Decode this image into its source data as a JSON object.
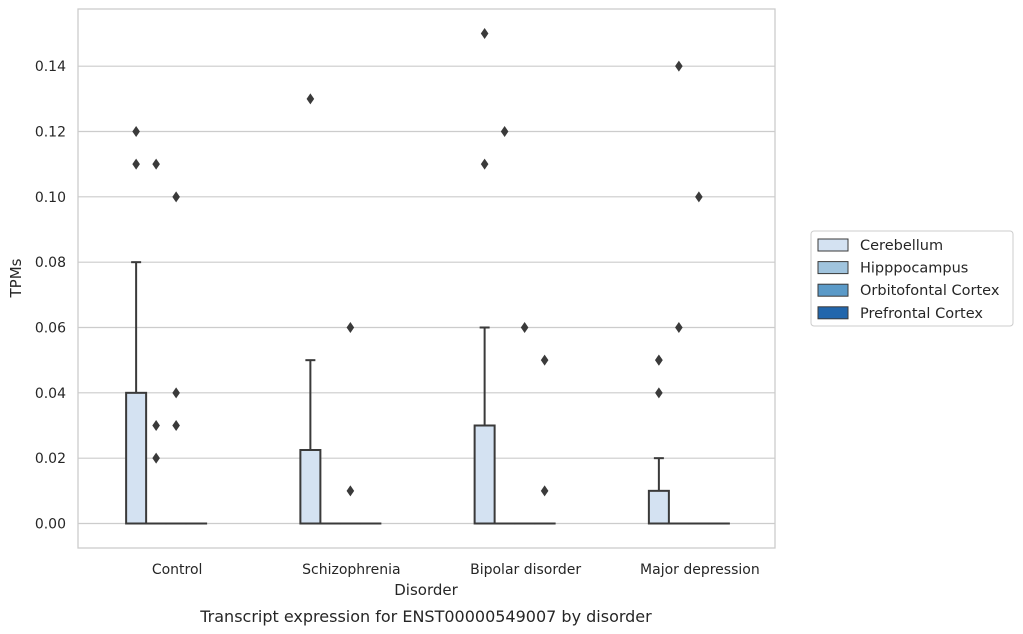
{
  "chart_data": {
    "type": "box",
    "caption": "Transcript expression for ENST00000549007 by disorder",
    "xlabel": "Disorder",
    "ylabel": "TPMs",
    "ylim": [
      -0.0075,
      0.1575
    ],
    "yticks": [
      0.0,
      0.02,
      0.04,
      0.06,
      0.08,
      0.1,
      0.12,
      0.14
    ],
    "ytick_labels": [
      "0.00",
      "0.02",
      "0.04",
      "0.06",
      "0.08",
      "0.10",
      "0.12",
      "0.14"
    ],
    "grid": "horizontal",
    "legend_position": "right",
    "categories": [
      "Control",
      "Schizophrenia",
      "Bipolar disorder",
      "Major depression"
    ],
    "series": [
      {
        "name": "Cerebellum",
        "color": "#d4e2f2",
        "boxes": [
          {
            "q1": 0.0,
            "median": 0.0,
            "q3": 0.04,
            "whisker_low": 0.0,
            "whisker_high": 0.08,
            "outliers": [
              0.11,
              0.12
            ]
          },
          {
            "q1": 0.0,
            "median": 0.0,
            "q3": 0.0225,
            "whisker_low": 0.0,
            "whisker_high": 0.05,
            "outliers": [
              0.13
            ]
          },
          {
            "q1": 0.0,
            "median": 0.0,
            "q3": 0.03,
            "whisker_low": 0.0,
            "whisker_high": 0.06,
            "outliers": [
              0.11,
              0.15
            ]
          },
          {
            "q1": 0.0,
            "median": 0.0,
            "q3": 0.01,
            "whisker_low": 0.0,
            "whisker_high": 0.02,
            "outliers": [
              0.04,
              0.05,
              0.05
            ]
          }
        ]
      },
      {
        "name": "Hipppocampus",
        "color": "#a0c4de",
        "boxes": [
          {
            "q1": 0.0,
            "median": 0.0,
            "q3": 0.0,
            "whisker_low": 0.0,
            "whisker_high": 0.0,
            "outliers": [
              0.02,
              0.03,
              0.11
            ]
          },
          {
            "q1": 0.0,
            "median": 0.0,
            "q3": 0.0,
            "whisker_low": 0.0,
            "whisker_high": 0.0,
            "outliers": []
          },
          {
            "q1": 0.0,
            "median": 0.0,
            "q3": 0.0,
            "whisker_low": 0.0,
            "whisker_high": 0.0,
            "outliers": [
              0.12
            ]
          },
          {
            "q1": 0.0,
            "median": 0.0,
            "q3": 0.0,
            "whisker_low": 0.0,
            "whisker_high": 0.0,
            "outliers": [
              0.06,
              0.14
            ]
          }
        ]
      },
      {
        "name": "Orbitofontal Cortex",
        "color": "#5b9ac8",
        "boxes": [
          {
            "q1": 0.0,
            "median": 0.0,
            "q3": 0.0,
            "whisker_low": 0.0,
            "whisker_high": 0.0,
            "outliers": [
              0.03,
              0.04,
              0.1
            ]
          },
          {
            "q1": 0.0,
            "median": 0.0,
            "q3": 0.0,
            "whisker_low": 0.0,
            "whisker_high": 0.0,
            "outliers": [
              0.01,
              0.06
            ]
          },
          {
            "q1": 0.0,
            "median": 0.0,
            "q3": 0.0,
            "whisker_low": 0.0,
            "whisker_high": 0.0,
            "outliers": [
              0.06
            ]
          },
          {
            "q1": 0.0,
            "median": 0.0,
            "q3": 0.0,
            "whisker_low": 0.0,
            "whisker_high": 0.0,
            "outliers": [
              0.1
            ]
          }
        ]
      },
      {
        "name": "Prefrontal Cortex",
        "color": "#2166ac",
        "boxes": [
          {
            "q1": 0.0,
            "median": 0.0,
            "q3": 0.0,
            "whisker_low": 0.0,
            "whisker_high": 0.0,
            "outliers": []
          },
          {
            "q1": 0.0,
            "median": 0.0,
            "q3": 0.0,
            "whisker_low": 0.0,
            "whisker_high": 0.0,
            "outliers": []
          },
          {
            "q1": 0.0,
            "median": 0.0,
            "q3": 0.0,
            "whisker_low": 0.0,
            "whisker_high": 0.0,
            "outliers": [
              0.01,
              0.05
            ]
          },
          {
            "q1": 0.0,
            "median": 0.0,
            "q3": 0.0,
            "whisker_low": 0.0,
            "whisker_high": 0.0,
            "outliers": []
          }
        ]
      }
    ]
  }
}
